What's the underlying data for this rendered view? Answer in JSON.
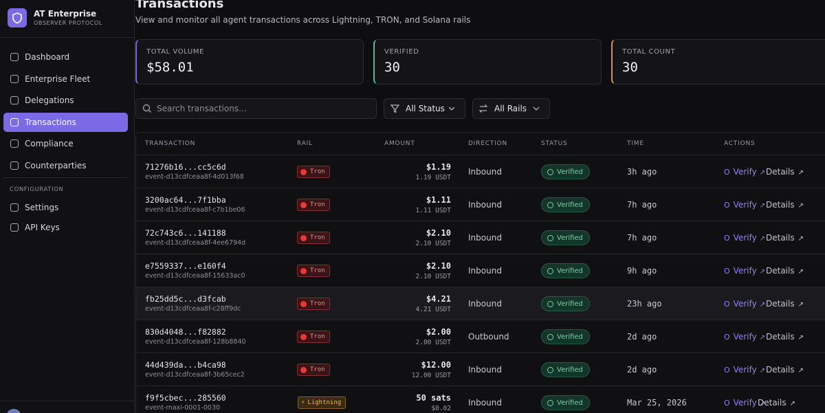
{
  "sidebar": {
    "brand": {
      "title": "AT Enterprise",
      "subtitle": "OBSERVER PROTOCOL"
    },
    "nav": [
      "Dashboard",
      "Enterprise Fleet",
      "Delegations",
      "Transactions",
      "Compliance",
      "Counterparties"
    ],
    "active": "Transactions",
    "section": "CONFIGURATION",
    "config": [
      "Settings",
      "API Keys"
    ]
  },
  "header": {
    "title": "Transactions",
    "subtitle": "View and monitor all agent transactions across Lightning, TRON, and Solana rails"
  },
  "stats": [
    {
      "label": "TOTAL VOLUME",
      "value": "$58.01"
    },
    {
      "label": "VERIFIED",
      "value": "30"
    },
    {
      "label": "TOTAL COUNT",
      "value": "30"
    }
  ],
  "filters": {
    "search": "Search transactions...",
    "status": "All Status",
    "rails": "All Rails"
  },
  "table": {
    "columns": [
      "TRANSACTION",
      "RAIL",
      "AMOUNT",
      "DIRECTION",
      "STATUS",
      "TIME",
      "ACTIONS"
    ],
    "rows": [
      {
        "id": "71276b16...cc5c6d",
        "event": "event-d13cdfceaa8f-4d013f68",
        "rail": "Tron",
        "amount": "$1.19",
        "amount_sub": "1.19 USDT",
        "direction": "Inbound",
        "status": "Verified",
        "time": "3h ago",
        "verify": "Verify",
        "details": "Details"
      },
      {
        "id": "3200ac64...7f1bba",
        "event": "event-d13cdfceaa8f-c7b1be06",
        "rail": "Tron",
        "amount": "$1.11",
        "amount_sub": "1.11 USDT",
        "direction": "Inbound",
        "status": "Verified",
        "time": "7h ago",
        "verify": "Verify",
        "details": "Details"
      },
      {
        "id": "72c743c6...141188",
        "event": "event-d13cdfceaa8f-4ee6794d",
        "rail": "Tron",
        "amount": "$2.10",
        "amount_sub": "2.10 USDT",
        "direction": "Inbound",
        "status": "Verified",
        "time": "7h ago",
        "verify": "Verify",
        "details": "Details"
      },
      {
        "id": "e7559337...e160f4",
        "event": "event-d13cdfceaa8f-15633ac0",
        "rail": "Tron",
        "amount": "$2.10",
        "amount_sub": "2.10 USDT",
        "direction": "Inbound",
        "status": "Verified",
        "time": "9h ago",
        "verify": "Verify",
        "details": "Details"
      },
      {
        "id": "fb25dd5c...d3fcab",
        "event": "event-d13cdfceaa8f-c28ff9dc",
        "rail": "Tron",
        "amount": "$4.21",
        "amount_sub": "4.21 USDT",
        "direction": "Inbound",
        "status": "Verified",
        "time": "23h ago",
        "verify": "Verify",
        "details": "Details"
      },
      {
        "id": "830d4048...f82882",
        "event": "event-d13cdfceaa8f-128b8840",
        "rail": "Tron",
        "amount": "$2.00",
        "amount_sub": "2.00 USDT",
        "direction": "Outbound",
        "status": "Verified",
        "time": "2d ago",
        "verify": "Verify",
        "details": "Details"
      },
      {
        "id": "44d439da...b4ca98",
        "event": "event-d13cdfceaa8f-3b65cec2",
        "rail": "Tron",
        "amount": "$12.00",
        "amount_sub": "12.00 USDT",
        "direction": "Inbound",
        "status": "Verified",
        "time": "2d ago",
        "verify": "Verify",
        "details": "Details"
      },
      {
        "id": "f9f5cbec...285560",
        "event": "event-maxi-0001-0030",
        "rail": "Lightning",
        "amount": "50 sats",
        "amount_sub": "$0.02",
        "direction": "Inbound",
        "status": "Verified",
        "time": "Mar 25, 2026",
        "verify": "Verify",
        "details": "Details"
      }
    ]
  }
}
